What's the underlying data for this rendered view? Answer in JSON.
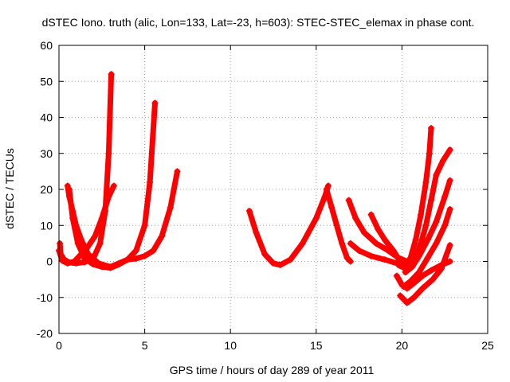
{
  "chart_data": {
    "type": "scatter",
    "title": "dSTEC Iono. truth (alic, Lon=133, Lat=-23, h=603): STEC-STEC_elemax in phase cont.",
    "xlabel": "GPS time / hours of day 289 of year 2011",
    "ylabel": "dSTEC  / TECUs",
    "xlim": [
      0,
      25
    ],
    "ylim": [
      -20,
      60
    ],
    "x_ticks": [
      0,
      5,
      10,
      15,
      20,
      25
    ],
    "y_ticks": [
      -20,
      -10,
      0,
      10,
      20,
      30,
      40,
      50,
      60
    ],
    "x_tick_labels": [
      "0",
      "5",
      "10",
      "15",
      "20",
      "25"
    ],
    "y_tick_labels": [
      "-20",
      "-10",
      "0",
      "10",
      "20",
      "30",
      "40",
      "50",
      "60"
    ],
    "grid": true,
    "marker": "plus",
    "color": "#ff0000",
    "arcs": [
      [
        [
          0.05,
          5
        ],
        [
          0.1,
          2
        ],
        [
          0.3,
          0.5
        ],
        [
          0.6,
          -0.3
        ],
        [
          1.0,
          -0.5
        ],
        [
          1.5,
          -0.2
        ],
        [
          2.0,
          0.8
        ],
        [
          2.4,
          5
        ],
        [
          2.7,
          14
        ],
        [
          2.9,
          30
        ],
        [
          3.05,
          52
        ]
      ],
      [
        [
          0.0,
          3
        ],
        [
          0.2,
          0.2
        ],
        [
          0.5,
          -0.5
        ],
        [
          0.9,
          0
        ],
        [
          1.2,
          1.5
        ],
        [
          1.6,
          3.5
        ],
        [
          2.1,
          7
        ],
        [
          2.5,
          12
        ],
        [
          2.9,
          18
        ],
        [
          3.2,
          21
        ]
      ],
      [
        [
          0.5,
          21
        ],
        [
          0.6,
          18
        ],
        [
          0.8,
          14
        ],
        [
          1.0,
          10
        ],
        [
          1.3,
          6
        ],
        [
          1.7,
          2
        ],
        [
          2.3,
          -0.5
        ],
        [
          3.0,
          -1.5
        ],
        [
          3.5,
          -0.5
        ],
        [
          4.0,
          0.5
        ],
        [
          4.5,
          3
        ],
        [
          5.0,
          10
        ],
        [
          5.3,
          22
        ],
        [
          5.6,
          44
        ]
      ],
      [
        [
          0.6,
          20
        ],
        [
          0.8,
          12
        ],
        [
          1.1,
          5
        ],
        [
          1.5,
          0.8
        ],
        [
          2.0,
          -0.8
        ],
        [
          2.5,
          -1.5
        ],
        [
          3.0,
          -1.8
        ],
        [
          3.5,
          -0.8
        ],
        [
          4.0,
          0.5
        ],
        [
          4.5,
          0.8
        ],
        [
          5.0,
          1.5
        ],
        [
          5.5,
          3
        ],
        [
          6.0,
          7
        ],
        [
          6.5,
          15
        ],
        [
          6.9,
          25
        ]
      ],
      [
        [
          11.1,
          14
        ],
        [
          11.5,
          8
        ],
        [
          12.0,
          2
        ],
        [
          12.5,
          -0.5
        ],
        [
          12.9,
          -1
        ],
        [
          13.5,
          0.5
        ],
        [
          14.2,
          5
        ],
        [
          15.0,
          12
        ],
        [
          15.5,
          18
        ],
        [
          15.7,
          21
        ]
      ],
      [
        [
          15.6,
          20
        ],
        [
          15.9,
          15
        ],
        [
          16.2,
          10
        ],
        [
          16.5,
          5
        ],
        [
          16.8,
          1
        ],
        [
          17.0,
          0
        ]
      ],
      [
        [
          16.9,
          17
        ],
        [
          17.3,
          12
        ],
        [
          17.8,
          8
        ],
        [
          18.5,
          5
        ],
        [
          19.2,
          3
        ],
        [
          19.8,
          1
        ],
        [
          20.3,
          0
        ]
      ],
      [
        [
          17.0,
          5
        ],
        [
          17.5,
          3
        ],
        [
          18.2,
          1.5
        ],
        [
          19.0,
          0.5
        ],
        [
          19.7,
          -0.5
        ],
        [
          20.2,
          -1
        ]
      ],
      [
        [
          18.2,
          13
        ],
        [
          18.6,
          9
        ],
        [
          19.0,
          6
        ],
        [
          19.5,
          3
        ],
        [
          19.9,
          0
        ],
        [
          20.2,
          -2
        ],
        [
          20.5,
          -1
        ],
        [
          20.8,
          1
        ],
        [
          21.1,
          5
        ],
        [
          21.4,
          10
        ],
        [
          21.7,
          17
        ],
        [
          22.0,
          24
        ],
        [
          22.4,
          28
        ],
        [
          22.8,
          31
        ]
      ],
      [
        [
          19.7,
          -4
        ],
        [
          20.0,
          -6.5
        ],
        [
          20.3,
          -7.5
        ],
        [
          20.7,
          -6
        ],
        [
          21.2,
          -4
        ],
        [
          21.7,
          -2.5
        ],
        [
          22.3,
          -1
        ],
        [
          22.8,
          0
        ]
      ],
      [
        [
          19.9,
          -9.5
        ],
        [
          20.3,
          -11.5
        ],
        [
          20.7,
          -10
        ],
        [
          21.2,
          -7.5
        ],
        [
          21.8,
          -5
        ],
        [
          22.3,
          -2
        ],
        [
          22.8,
          4.5
        ]
      ],
      [
        [
          19.8,
          -1
        ],
        [
          20.2,
          -2
        ],
        [
          20.5,
          1
        ],
        [
          20.8,
          6
        ],
        [
          21.1,
          13
        ],
        [
          21.4,
          22
        ],
        [
          21.6,
          30
        ],
        [
          21.7,
          37
        ]
      ],
      [
        [
          20.1,
          -7
        ],
        [
          20.5,
          -5.5
        ],
        [
          21.0,
          -3
        ],
        [
          21.5,
          1
        ],
        [
          22.0,
          5
        ],
        [
          22.5,
          10
        ],
        [
          22.8,
          14.5
        ]
      ],
      [
        [
          20.2,
          -3
        ],
        [
          20.6,
          -1.5
        ],
        [
          21.0,
          1.5
        ],
        [
          21.5,
          6
        ],
        [
          22.0,
          11
        ],
        [
          22.5,
          18
        ],
        [
          22.8,
          22.5
        ]
      ]
    ]
  }
}
